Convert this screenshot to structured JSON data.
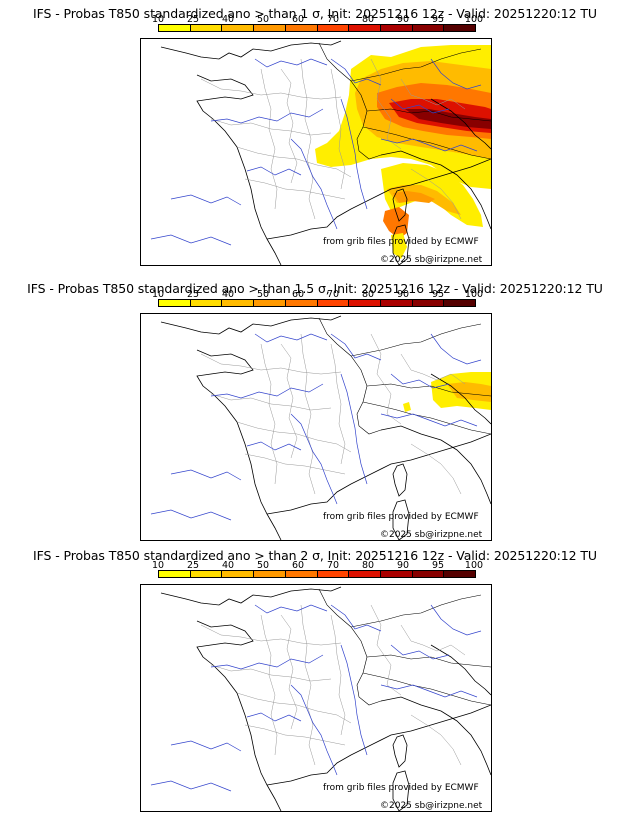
{
  "colors": [
    "#ffff00",
    "#ffdd00",
    "#ffbb00",
    "#ff9900",
    "#ff7700",
    "#ff4400",
    "#dd1100",
    "#aa0000",
    "#880000",
    "#550000"
  ],
  "scale_labels": [
    "10",
    "25",
    "40",
    "50",
    "60",
    "70",
    "80",
    "90",
    "95",
    "100"
  ],
  "source_text": "from grib files provided by ECMWF",
  "copyright_text": "©2025 sb@irizpne.net",
  "panels": [
    {
      "title": "IFS - Probas T850  standardized ano > than 1 σ, Init: 20251216 12z - Valid: 20251220:12 TU",
      "sigma": "1"
    },
    {
      "title": "IFS - Probas T850  standardized ano > than 1.5 σ, Init: 20251216 12z - Valid: 20251220:12 TU",
      "sigma": "1.5"
    },
    {
      "title": "IFS - Probas T850  standardized ano > than 2 σ, Init: 20251216 12z - Valid: 20251220:12 TU",
      "sigma": "2"
    }
  ]
}
